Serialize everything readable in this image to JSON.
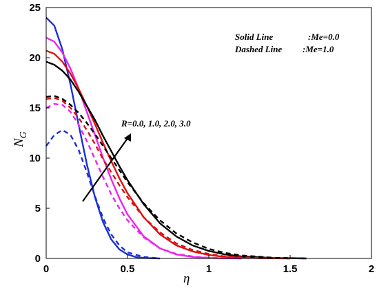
{
  "chart_data": {
    "type": "line",
    "title": "",
    "xlabel": "η",
    "ylabel": "N",
    "ylabel_subscript": "G",
    "xlim": [
      0,
      2
    ],
    "ylim": [
      0,
      25
    ],
    "x_ticks": [
      0,
      0.5,
      1,
      1.5,
      2
    ],
    "x_tick_labels": [
      "0",
      "0.5",
      "1",
      "1.5",
      "2"
    ],
    "y_ticks": [
      0,
      5,
      10,
      15,
      20,
      25
    ],
    "y_tick_labels": [
      "0",
      "5",
      "10",
      "15",
      "20",
      "25"
    ],
    "grid": false,
    "legend": {
      "solid": "Solid Line",
      "solid_value": ":Me=0.0",
      "dashed": "Dashed Line",
      "dashed_value": ":Me=1.0"
    },
    "annotation": "R=0.0, 1.0, 2.0, 3.0",
    "series": [
      {
        "R": "0.0",
        "style": "solid",
        "color": "#1a2fd6",
        "x": [
          0,
          0.05,
          0.1,
          0.15,
          0.2,
          0.25,
          0.3,
          0.35,
          0.4,
          0.45,
          0.5,
          0.55,
          0.6,
          0.7
        ],
        "y": [
          24.0,
          23.2,
          20.8,
          17.3,
          13.3,
          9.4,
          6.1,
          3.6,
          1.9,
          0.9,
          0.4,
          0.15,
          0.05,
          0
        ]
      },
      {
        "R": "1.0",
        "style": "solid",
        "color": "#ee22ee",
        "x": [
          0,
          0.05,
          0.1,
          0.15,
          0.2,
          0.25,
          0.3,
          0.35,
          0.4,
          0.45,
          0.5,
          0.6,
          0.7,
          0.8,
          0.9,
          1.0,
          1.2
        ],
        "y": [
          22.0,
          21.6,
          20.5,
          18.9,
          16.9,
          14.6,
          12.3,
          10.0,
          7.9,
          6.0,
          4.4,
          2.2,
          1.0,
          0.4,
          0.15,
          0.05,
          0
        ]
      },
      {
        "R": "2.0",
        "style": "solid",
        "color": "#dd1111",
        "x": [
          0,
          0.05,
          0.1,
          0.15,
          0.2,
          0.25,
          0.3,
          0.35,
          0.4,
          0.45,
          0.5,
          0.6,
          0.7,
          0.8,
          0.9,
          1.0,
          1.1,
          1.3,
          1.5
        ],
        "y": [
          20.7,
          20.4,
          19.6,
          18.4,
          16.9,
          15.2,
          13.4,
          11.5,
          9.7,
          8.0,
          6.5,
          4.1,
          2.4,
          1.3,
          0.7,
          0.35,
          0.15,
          0.03,
          0
        ]
      },
      {
        "R": "3.0",
        "style": "solid",
        "color": "#000000",
        "x": [
          0,
          0.05,
          0.1,
          0.15,
          0.2,
          0.25,
          0.3,
          0.35,
          0.4,
          0.45,
          0.5,
          0.6,
          0.7,
          0.8,
          0.9,
          1.0,
          1.1,
          1.2,
          1.4,
          1.6
        ],
        "y": [
          19.6,
          19.3,
          18.7,
          17.8,
          16.6,
          15.2,
          13.8,
          12.2,
          10.7,
          9.2,
          7.8,
          5.4,
          3.5,
          2.2,
          1.3,
          0.75,
          0.4,
          0.2,
          0.05,
          0
        ]
      },
      {
        "R": "0.0",
        "style": "dashed",
        "color": "#1a2fd6",
        "x": [
          0,
          0.05,
          0.1,
          0.15,
          0.2,
          0.25,
          0.3,
          0.35,
          0.4,
          0.45,
          0.5,
          0.6,
          0.7
        ],
        "y": [
          11.2,
          12.3,
          12.8,
          12.3,
          10.8,
          8.6,
          6.2,
          4.0,
          2.4,
          1.3,
          0.6,
          0.15,
          0
        ]
      },
      {
        "R": "1.0",
        "style": "dashed",
        "color": "#ee22ee",
        "x": [
          0,
          0.05,
          0.1,
          0.15,
          0.2,
          0.25,
          0.3,
          0.35,
          0.4,
          0.45,
          0.5,
          0.6,
          0.7,
          0.8,
          0.9,
          1.0,
          1.2
        ],
        "y": [
          15.0,
          15.4,
          15.3,
          14.6,
          13.3,
          11.7,
          9.9,
          8.1,
          6.4,
          5.0,
          3.8,
          2.1,
          1.0,
          0.45,
          0.2,
          0.07,
          0
        ]
      },
      {
        "R": "2.0",
        "style": "dashed",
        "color": "#dd1111",
        "x": [
          0,
          0.05,
          0.1,
          0.15,
          0.2,
          0.25,
          0.3,
          0.35,
          0.4,
          0.45,
          0.5,
          0.6,
          0.7,
          0.8,
          0.9,
          1.0,
          1.1,
          1.3,
          1.5
        ],
        "y": [
          15.9,
          16.0,
          15.7,
          15.0,
          14.0,
          12.8,
          11.4,
          9.9,
          8.6,
          7.3,
          6.1,
          4.1,
          2.6,
          1.5,
          0.85,
          0.45,
          0.2,
          0.05,
          0
        ]
      },
      {
        "R": "3.0",
        "style": "dashed",
        "color": "#000000",
        "x": [
          0,
          0.05,
          0.1,
          0.15,
          0.2,
          0.25,
          0.3,
          0.35,
          0.4,
          0.45,
          0.5,
          0.6,
          0.7,
          0.8,
          0.9,
          1.0,
          1.1,
          1.2,
          1.4,
          1.6
        ],
        "y": [
          16.1,
          16.2,
          15.9,
          15.3,
          14.5,
          13.5,
          12.4,
          11.2,
          10.0,
          8.8,
          7.6,
          5.5,
          3.8,
          2.5,
          1.6,
          0.95,
          0.55,
          0.3,
          0.07,
          0
        ]
      }
    ]
  }
}
